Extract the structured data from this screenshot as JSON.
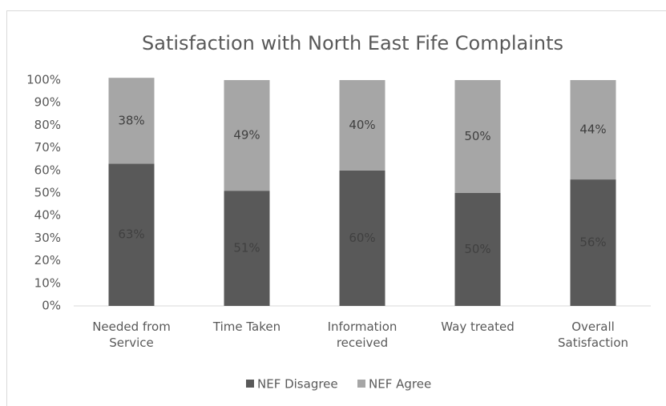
{
  "chart_data": {
    "type": "stacked_bar",
    "title": "Satisfaction with North East Fife Complaints",
    "categories": [
      "Needed from Service",
      "Time Taken",
      "Information received",
      "Way treated",
      "Overall Satisfaction"
    ],
    "series": [
      {
        "name": "NEF Disagree",
        "color": "#595959",
        "values": [
          63,
          51,
          60,
          50,
          56
        ],
        "value_labels": [
          "63%",
          "51%",
          "60%",
          "50%",
          "56%"
        ]
      },
      {
        "name": "NEF Agree",
        "color": "#a6a6a6",
        "values": [
          38,
          49,
          40,
          50,
          44
        ],
        "value_labels": [
          "38%",
          "49%",
          "40%",
          "50%",
          "44%"
        ]
      }
    ],
    "ylim": [
      0,
      100
    ],
    "yticks": [
      {
        "value": 0,
        "label": "0%"
      },
      {
        "value": 10,
        "label": "10%"
      },
      {
        "value": 20,
        "label": "20%"
      },
      {
        "value": 30,
        "label": "30%"
      },
      {
        "value": 40,
        "label": "40%"
      },
      {
        "value": 50,
        "label": "50%"
      },
      {
        "value": 60,
        "label": "60%"
      },
      {
        "value": 70,
        "label": "70%"
      },
      {
        "value": 80,
        "label": "80%"
      },
      {
        "value": 90,
        "label": "90%"
      },
      {
        "value": 100,
        "label": "100%"
      }
    ],
    "legend": "bottom"
  }
}
